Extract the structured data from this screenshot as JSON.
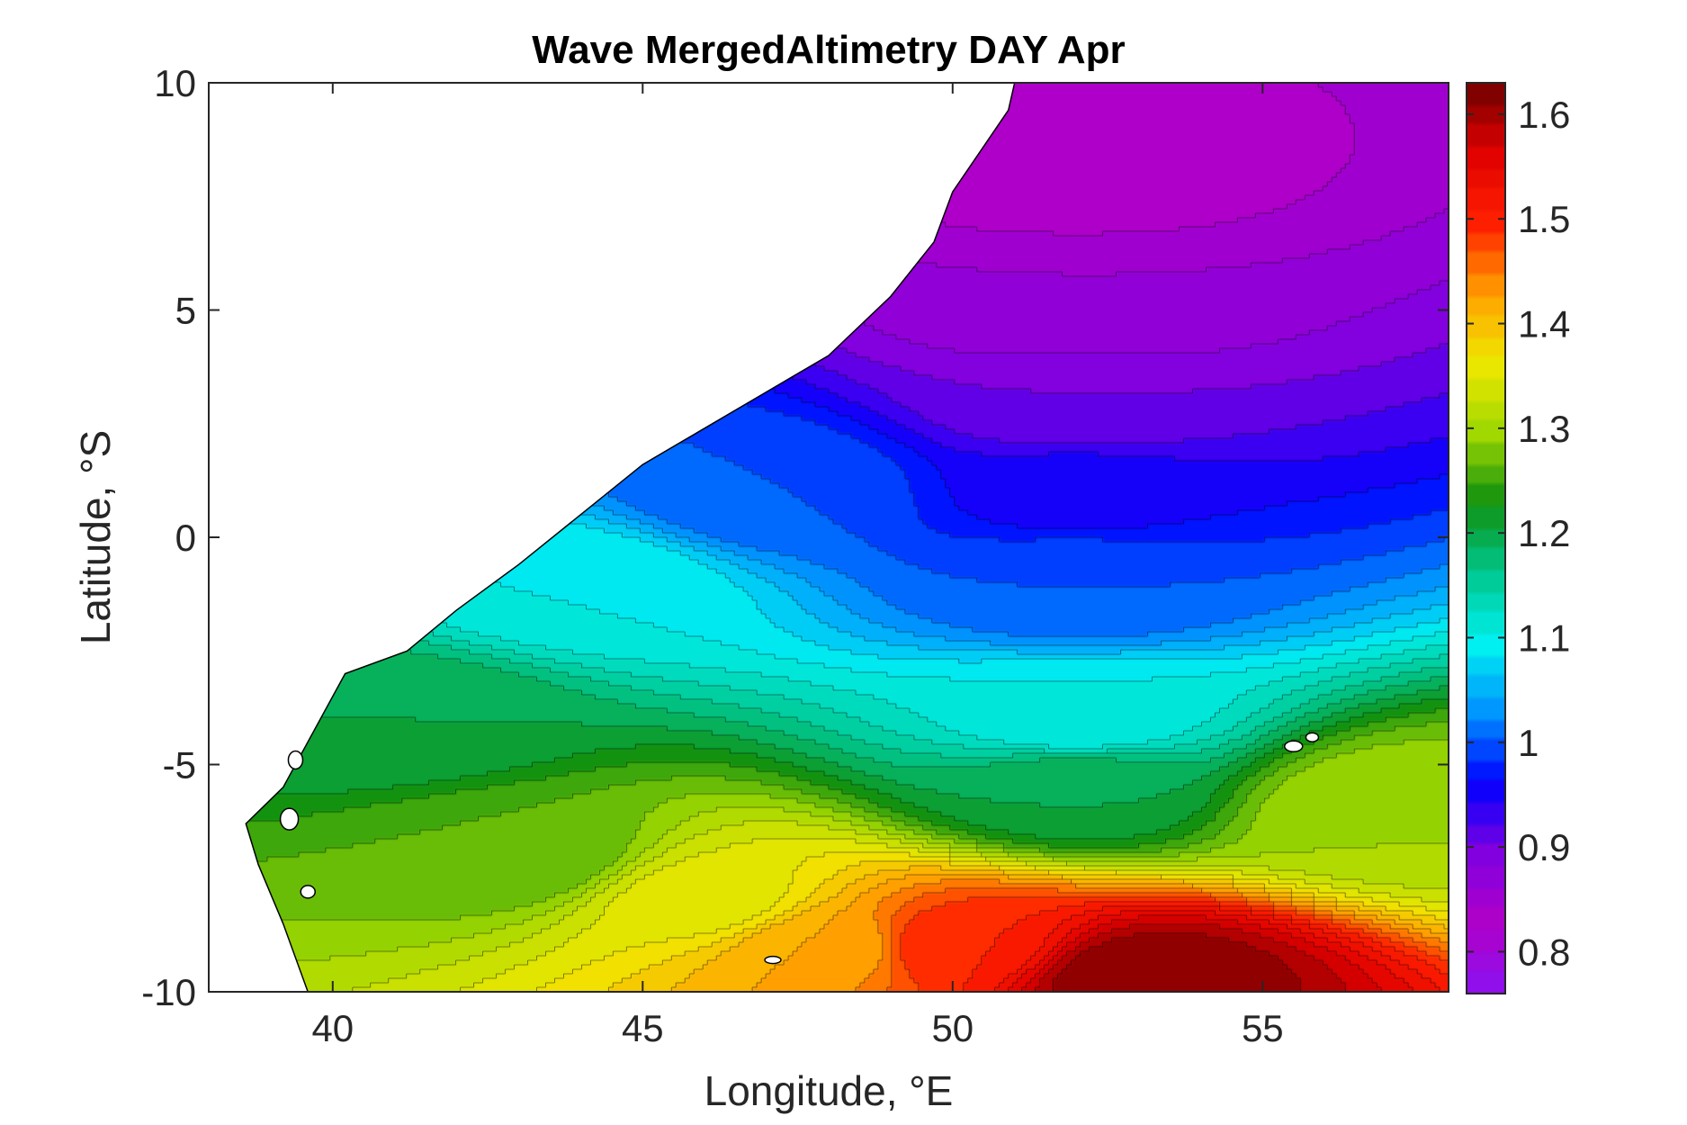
{
  "chart_data": {
    "type": "heatmap",
    "subtype": "filled-contour-map",
    "title": "Wave MergedAltimetry DAY Apr",
    "xlabel": "Longitude, °E",
    "ylabel": "Latitude, °S",
    "xlim": [
      38,
      58
    ],
    "ylim": [
      -10,
      10
    ],
    "x_ticks": [
      40,
      45,
      50,
      55
    ],
    "y_ticks": [
      -10,
      -5,
      0,
      5,
      10
    ],
    "x_tick_labels": [
      "40",
      "45",
      "50",
      "55"
    ],
    "y_tick_labels": [
      "-10",
      "-5",
      "0",
      "5",
      "10"
    ],
    "colorbar": {
      "range": [
        0.76,
        1.63
      ],
      "ticks": [
        0.8,
        0.9,
        1.0,
        1.1,
        1.2,
        1.3,
        1.4,
        1.5,
        1.6
      ],
      "tick_labels": [
        "0.8",
        "0.9",
        "1",
        "1.1",
        "1.2",
        "1.3",
        "1.4",
        "1.5",
        "1.6"
      ],
      "colormap": [
        "#8a12f0",
        "#b000c8",
        "#8000e0",
        "#0000ff",
        "#0090ff",
        "#00f0f0",
        "#00c890",
        "#109010",
        "#a0d800",
        "#f0e800",
        "#ffa000",
        "#ff2000",
        "#e00000",
        "#700000"
      ]
    },
    "grid": false,
    "land_color": "#ffffff",
    "coastline": [
      [
        39.6,
        -10
      ],
      [
        39.2,
        -8.5
      ],
      [
        38.8,
        -7.2
      ],
      [
        38.6,
        -6.3
      ],
      [
        39.2,
        -5.5
      ],
      [
        39.6,
        -4.5
      ],
      [
        40.2,
        -3.0
      ],
      [
        41.2,
        -2.5
      ],
      [
        42.0,
        -1.6
      ],
      [
        43.0,
        -0.6
      ],
      [
        44.0,
        0.5
      ],
      [
        45.0,
        1.6
      ],
      [
        46.0,
        2.4
      ],
      [
        47.0,
        3.2
      ],
      [
        48.0,
        4.0
      ],
      [
        49.0,
        5.3
      ],
      [
        49.7,
        6.5
      ],
      [
        50.0,
        7.6
      ],
      [
        50.5,
        8.6
      ],
      [
        50.9,
        9.4
      ],
      [
        51.0,
        10
      ]
    ],
    "field_samples": [
      {
        "lon": 52,
        "lat": 8,
        "value": 0.83
      },
      {
        "lon": 52,
        "lat": 5,
        "value": 0.86
      },
      {
        "lon": 52,
        "lat": 3,
        "value": 0.9
      },
      {
        "lon": 52,
        "lat": 1,
        "value": 0.95
      },
      {
        "lon": 52,
        "lat": -1,
        "value": 1.0
      },
      {
        "lon": 47,
        "lat": 1,
        "value": 1.0
      },
      {
        "lon": 44,
        "lat": -1,
        "value": 1.1
      },
      {
        "lon": 52,
        "lat": -4,
        "value": 1.1
      },
      {
        "lon": 52,
        "lat": -5.5,
        "value": 1.2
      },
      {
        "lon": 41,
        "lat": -4,
        "value": 1.2
      },
      {
        "lon": 43,
        "lat": -7,
        "value": 1.26
      },
      {
        "lon": 46,
        "lat": -8,
        "value": 1.35
      },
      {
        "lon": 48,
        "lat": -9,
        "value": 1.42
      },
      {
        "lon": 50,
        "lat": -9,
        "value": 1.5
      },
      {
        "lon": 53,
        "lat": -9.7,
        "value": 1.62
      },
      {
        "lon": 57,
        "lat": -6,
        "value": 1.3
      }
    ]
  }
}
